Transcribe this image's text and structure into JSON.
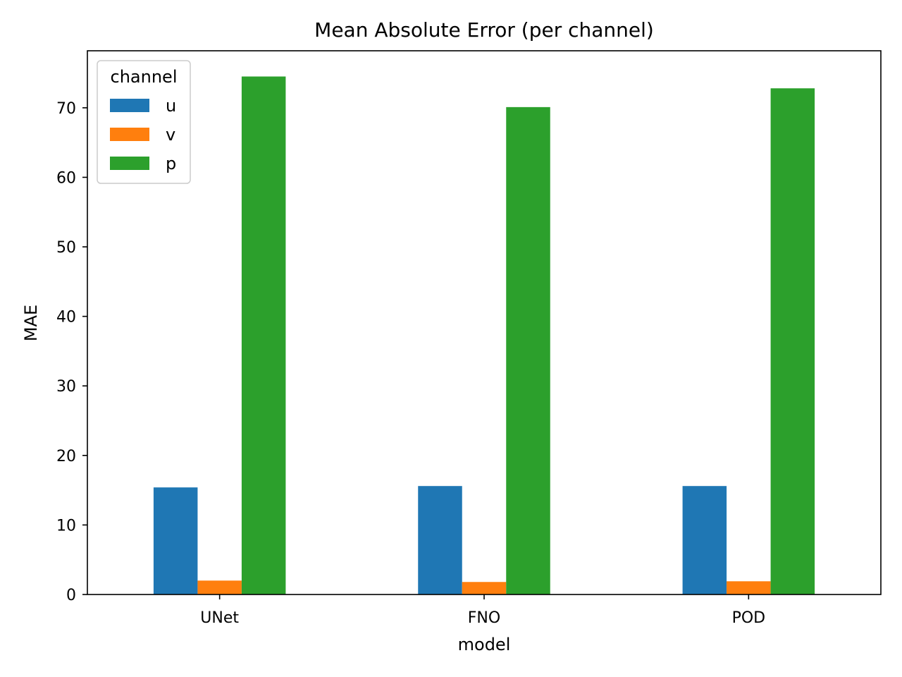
{
  "chart_data": {
    "type": "bar",
    "title": "Mean Absolute Error (per channel)",
    "xlabel": "model",
    "ylabel": "MAE",
    "categories": [
      "UNet",
      "FNO",
      "POD"
    ],
    "series": [
      {
        "name": "u",
        "color": "#1f77b4",
        "values": [
          15.4,
          15.6,
          15.6
        ]
      },
      {
        "name": "v",
        "color": "#ff7f0e",
        "values": [
          2.0,
          1.8,
          1.9
        ]
      },
      {
        "name": "p",
        "color": "#2ca02c",
        "values": [
          74.5,
          70.1,
          72.8
        ]
      }
    ],
    "ylim": [
      0,
      78.2
    ],
    "yticks": [
      0,
      10,
      20,
      30,
      40,
      50,
      60,
      70
    ],
    "legend": {
      "title": "channel",
      "placement": "top-left"
    },
    "grid": false
  }
}
